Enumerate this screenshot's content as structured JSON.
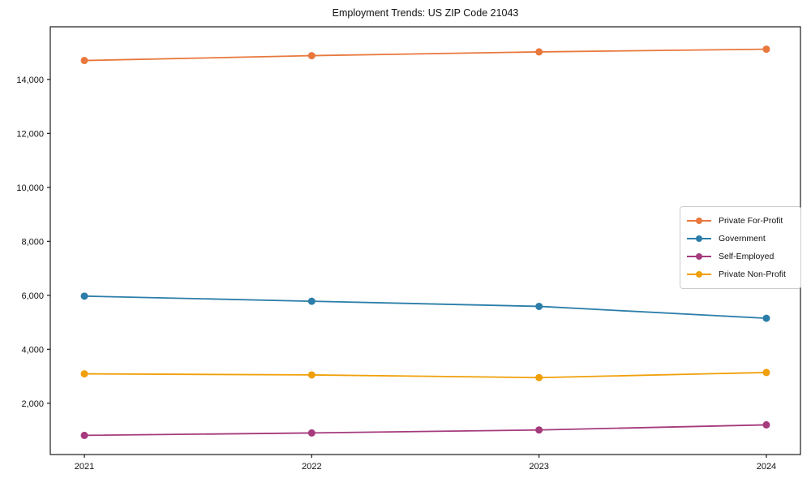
{
  "chart_data": {
    "type": "line",
    "title": "Employment Trends: US ZIP Code 21043",
    "x": [
      2021,
      2022,
      2023,
      2024
    ],
    "xtick_labels": [
      "2021",
      "2022",
      "2023",
      "2024"
    ],
    "series": [
      {
        "name": "Private For-Profit",
        "color": "#e8783c",
        "values": [
          14700,
          14880,
          15020,
          15120
        ]
      },
      {
        "name": "Government",
        "color": "#2b7ea9",
        "values": [
          5970,
          5780,
          5590,
          5150
        ]
      },
      {
        "name": "Self-Employed",
        "color": "#a53a7d",
        "values": [
          810,
          900,
          1010,
          1200
        ]
      },
      {
        "name": "Private Non-Profit",
        "color": "#f0a00a",
        "values": [
          3090,
          3050,
          2950,
          3140
        ]
      }
    ],
    "ylim": [
      100,
      15950
    ],
    "yticks": [
      2000,
      4000,
      6000,
      8000,
      10000,
      12000,
      14000
    ],
    "ytick_labels": [
      "2,000",
      "4,000",
      "6,000",
      "8,000",
      "10,000",
      "12,000",
      "14,000"
    ],
    "xlabel": "",
    "ylabel": "",
    "grid": false,
    "legend_position": "right",
    "frame_color": "#1a1a1a"
  }
}
